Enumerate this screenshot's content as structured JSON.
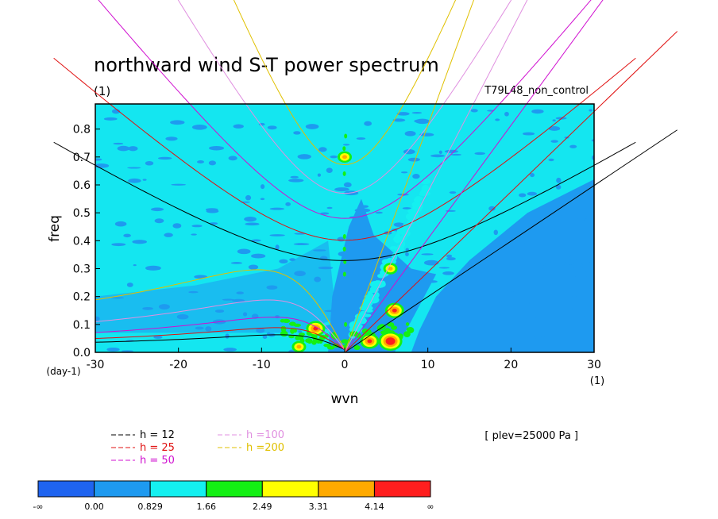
{
  "chart_data": {
    "type": "heatmap",
    "title": "northward wind S-T power spectrum",
    "title_units": "(1)",
    "run_label": "T79L48_non_control",
    "xlabel": "wvn",
    "xlabel_units": "(1)",
    "ylabel": "freq",
    "ylabel_units": "(day-1)",
    "xlim": [
      -30,
      30
    ],
    "ylim": [
      0,
      0.89
    ],
    "xticks": [
      -30,
      -20,
      -10,
      0,
      10,
      20,
      30
    ],
    "xtick_labels": [
      "-30",
      "-20",
      "-10",
      "0",
      "10",
      "20",
      "30"
    ],
    "yticks": [
      0,
      0.1,
      0.2,
      0.3,
      0.4,
      0.5,
      0.6,
      0.7,
      0.8
    ],
    "ytick_labels": [
      "0.0",
      "0.1",
      "0.2",
      "0.3",
      "0.4",
      "0.5",
      "0.6",
      "0.7",
      "0.8"
    ],
    "level_note": "[ plev=25000 Pa ]",
    "colorbar": {
      "labels": [
        "-∞",
        "0.00",
        "0.829",
        "1.66",
        "2.49",
        "3.31",
        "4.14",
        "∞"
      ],
      "colors": [
        "#1f64f0",
        "#1e9af0",
        "#14f0f0",
        "#14f014",
        "#ffff00",
        "#ffaa00",
        "#ff1e1e"
      ]
    },
    "dispersion_curves": [
      {
        "label": "h = 12",
        "h": 12,
        "color": "#000000"
      },
      {
        "label": "h = 25",
        "h": 25,
        "color": "#e01010"
      },
      {
        "label": "h = 50",
        "h": 50,
        "color": "#d010d0"
      },
      {
        "label": "h =100",
        "h": 100,
        "color": "#e090e0"
      },
      {
        "label": "h =200",
        "h": 200,
        "color": "#e0c000"
      }
    ],
    "hotspots": [
      {
        "x": -3.5,
        "y": 0.085,
        "level": 3
      },
      {
        "x": 3.0,
        "y": 0.04,
        "level": 3
      },
      {
        "x": 5.5,
        "y": 0.04,
        "level": 4
      },
      {
        "x": 6.0,
        "y": 0.15,
        "level": 3
      },
      {
        "x": 5.5,
        "y": 0.3,
        "level": 2
      },
      {
        "x": 0,
        "y": 0.7,
        "level": 2
      },
      {
        "x": -5.5,
        "y": 0.02,
        "level": 2
      }
    ]
  }
}
